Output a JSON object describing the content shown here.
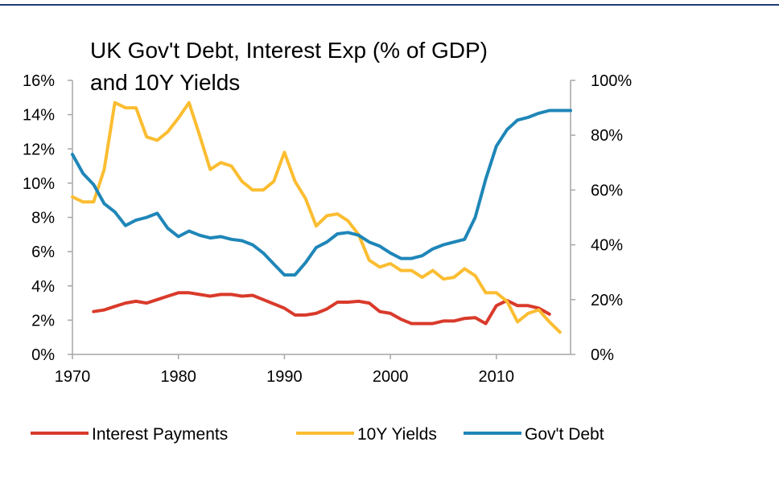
{
  "chart_data": {
    "type": "line",
    "title_line1": "UK Gov't Debt, Interest Exp (% of GDP)",
    "title_line2": "and 10Y Yields",
    "xlabel": "",
    "ylabel": "",
    "x_ticks": [
      "1970",
      "1980",
      "1990",
      "2000",
      "2010"
    ],
    "x_tick_values": [
      1970,
      1980,
      1990,
      2000,
      2010
    ],
    "xlim": [
      1970,
      2017
    ],
    "y_left_ticks": [
      "0%",
      "2%",
      "4%",
      "6%",
      "8%",
      "10%",
      "12%",
      "14%",
      "16%"
    ],
    "y_left_tick_values": [
      0,
      2,
      4,
      6,
      8,
      10,
      12,
      14,
      16
    ],
    "ylim_left": [
      0,
      16
    ],
    "y_right_ticks": [
      "0%",
      "20%",
      "40%",
      "60%",
      "80%",
      "100%"
    ],
    "y_right_tick_values": [
      0,
      20,
      40,
      60,
      80,
      100
    ],
    "ylim_right": [
      0,
      100
    ],
    "grid": false,
    "legend_position": "bottom",
    "series": [
      {
        "name": "Interest Payments",
        "axis": "left",
        "color": "#d93a2b",
        "points": [
          [
            1972,
            2.5
          ],
          [
            1973,
            2.6
          ],
          [
            1974,
            2.8
          ],
          [
            1975,
            3.0
          ],
          [
            1976,
            3.1
          ],
          [
            1977,
            3.0
          ],
          [
            1978,
            3.2
          ],
          [
            1979,
            3.4
          ],
          [
            1980,
            3.6
          ],
          [
            1981,
            3.6
          ],
          [
            1982,
            3.5
          ],
          [
            1983,
            3.4
          ],
          [
            1984,
            3.5
          ],
          [
            1985,
            3.5
          ],
          [
            1986,
            3.4
          ],
          [
            1987,
            3.45
          ],
          [
            1988,
            3.2
          ],
          [
            1989,
            2.95
          ],
          [
            1990,
            2.7
          ],
          [
            1991,
            2.3
          ],
          [
            1992,
            2.3
          ],
          [
            1993,
            2.4
          ],
          [
            1994,
            2.65
          ],
          [
            1995,
            3.05
          ],
          [
            1996,
            3.05
          ],
          [
            1997,
            3.1
          ],
          [
            1998,
            3.0
          ],
          [
            1999,
            2.5
          ],
          [
            2000,
            2.4
          ],
          [
            2001,
            2.05
          ],
          [
            2002,
            1.8
          ],
          [
            2003,
            1.8
          ],
          [
            2004,
            1.8
          ],
          [
            2005,
            1.95
          ],
          [
            2006,
            1.95
          ],
          [
            2007,
            2.1
          ],
          [
            2008,
            2.15
          ],
          [
            2009,
            1.8
          ],
          [
            2010,
            2.85
          ],
          [
            2011,
            3.15
          ],
          [
            2012,
            2.85
          ],
          [
            2013,
            2.85
          ],
          [
            2014,
            2.7
          ],
          [
            2015,
            2.35
          ]
        ]
      },
      {
        "name": "10Y Yields",
        "axis": "left",
        "color": "#fbbd31",
        "points": [
          [
            1970,
            9.2
          ],
          [
            1971,
            8.9
          ],
          [
            1972,
            8.9
          ],
          [
            1973,
            10.8
          ],
          [
            1974,
            14.7
          ],
          [
            1975,
            14.4
          ],
          [
            1976,
            14.4
          ],
          [
            1977,
            12.7
          ],
          [
            1978,
            12.5
          ],
          [
            1979,
            13.0
          ],
          [
            1980,
            13.8
          ],
          [
            1981,
            14.7
          ],
          [
            1982,
            12.8
          ],
          [
            1983,
            10.8
          ],
          [
            1984,
            11.2
          ],
          [
            1985,
            11.0
          ],
          [
            1986,
            10.1
          ],
          [
            1987,
            9.6
          ],
          [
            1988,
            9.6
          ],
          [
            1989,
            10.1
          ],
          [
            1990,
            11.8
          ],
          [
            1991,
            10.1
          ],
          [
            1992,
            9.1
          ],
          [
            1993,
            7.5
          ],
          [
            1994,
            8.1
          ],
          [
            1995,
            8.2
          ],
          [
            1996,
            7.8
          ],
          [
            1997,
            7.0
          ],
          [
            1998,
            5.5
          ],
          [
            1999,
            5.1
          ],
          [
            2000,
            5.3
          ],
          [
            2001,
            4.9
          ],
          [
            2002,
            4.9
          ],
          [
            2003,
            4.5
          ],
          [
            2004,
            4.9
          ],
          [
            2005,
            4.4
          ],
          [
            2006,
            4.5
          ],
          [
            2007,
            5.0
          ],
          [
            2008,
            4.6
          ],
          [
            2009,
            3.6
          ],
          [
            2010,
            3.6
          ],
          [
            2011,
            3.1
          ],
          [
            2012,
            1.9
          ],
          [
            2013,
            2.4
          ],
          [
            2014,
            2.6
          ],
          [
            2015,
            1.9
          ],
          [
            2016,
            1.3
          ]
        ]
      },
      {
        "name": "Gov't Debt",
        "axis": "right",
        "color": "#1f86b8",
        "points": [
          [
            1970,
            73
          ],
          [
            1971,
            66
          ],
          [
            1972,
            62
          ],
          [
            1973,
            55
          ],
          [
            1974,
            52
          ],
          [
            1975,
            47
          ],
          [
            1976,
            49
          ],
          [
            1977,
            50
          ],
          [
            1978,
            51.5
          ],
          [
            1979,
            46
          ],
          [
            1980,
            43
          ],
          [
            1981,
            45
          ],
          [
            1982,
            43.5
          ],
          [
            1983,
            42.5
          ],
          [
            1984,
            43
          ],
          [
            1985,
            42
          ],
          [
            1986,
            41.5
          ],
          [
            1987,
            40
          ],
          [
            1988,
            37
          ],
          [
            1989,
            33
          ],
          [
            1990,
            29
          ],
          [
            1991,
            29
          ],
          [
            1992,
            33.5
          ],
          [
            1993,
            39
          ],
          [
            1994,
            41
          ],
          [
            1995,
            44
          ],
          [
            1996,
            44.5
          ],
          [
            1997,
            43.5
          ],
          [
            1998,
            41
          ],
          [
            1999,
            39.5
          ],
          [
            2000,
            37
          ],
          [
            2001,
            35
          ],
          [
            2002,
            35
          ],
          [
            2003,
            36
          ],
          [
            2004,
            38.5
          ],
          [
            2005,
            40
          ],
          [
            2006,
            41
          ],
          [
            2007,
            42
          ],
          [
            2008,
            50
          ],
          [
            2009,
            64
          ],
          [
            2010,
            76
          ],
          [
            2011,
            82
          ],
          [
            2012,
            85.5
          ],
          [
            2013,
            86.5
          ],
          [
            2014,
            88
          ],
          [
            2015,
            89
          ],
          [
            2016,
            89
          ],
          [
            2017,
            89
          ]
        ]
      }
    ]
  }
}
